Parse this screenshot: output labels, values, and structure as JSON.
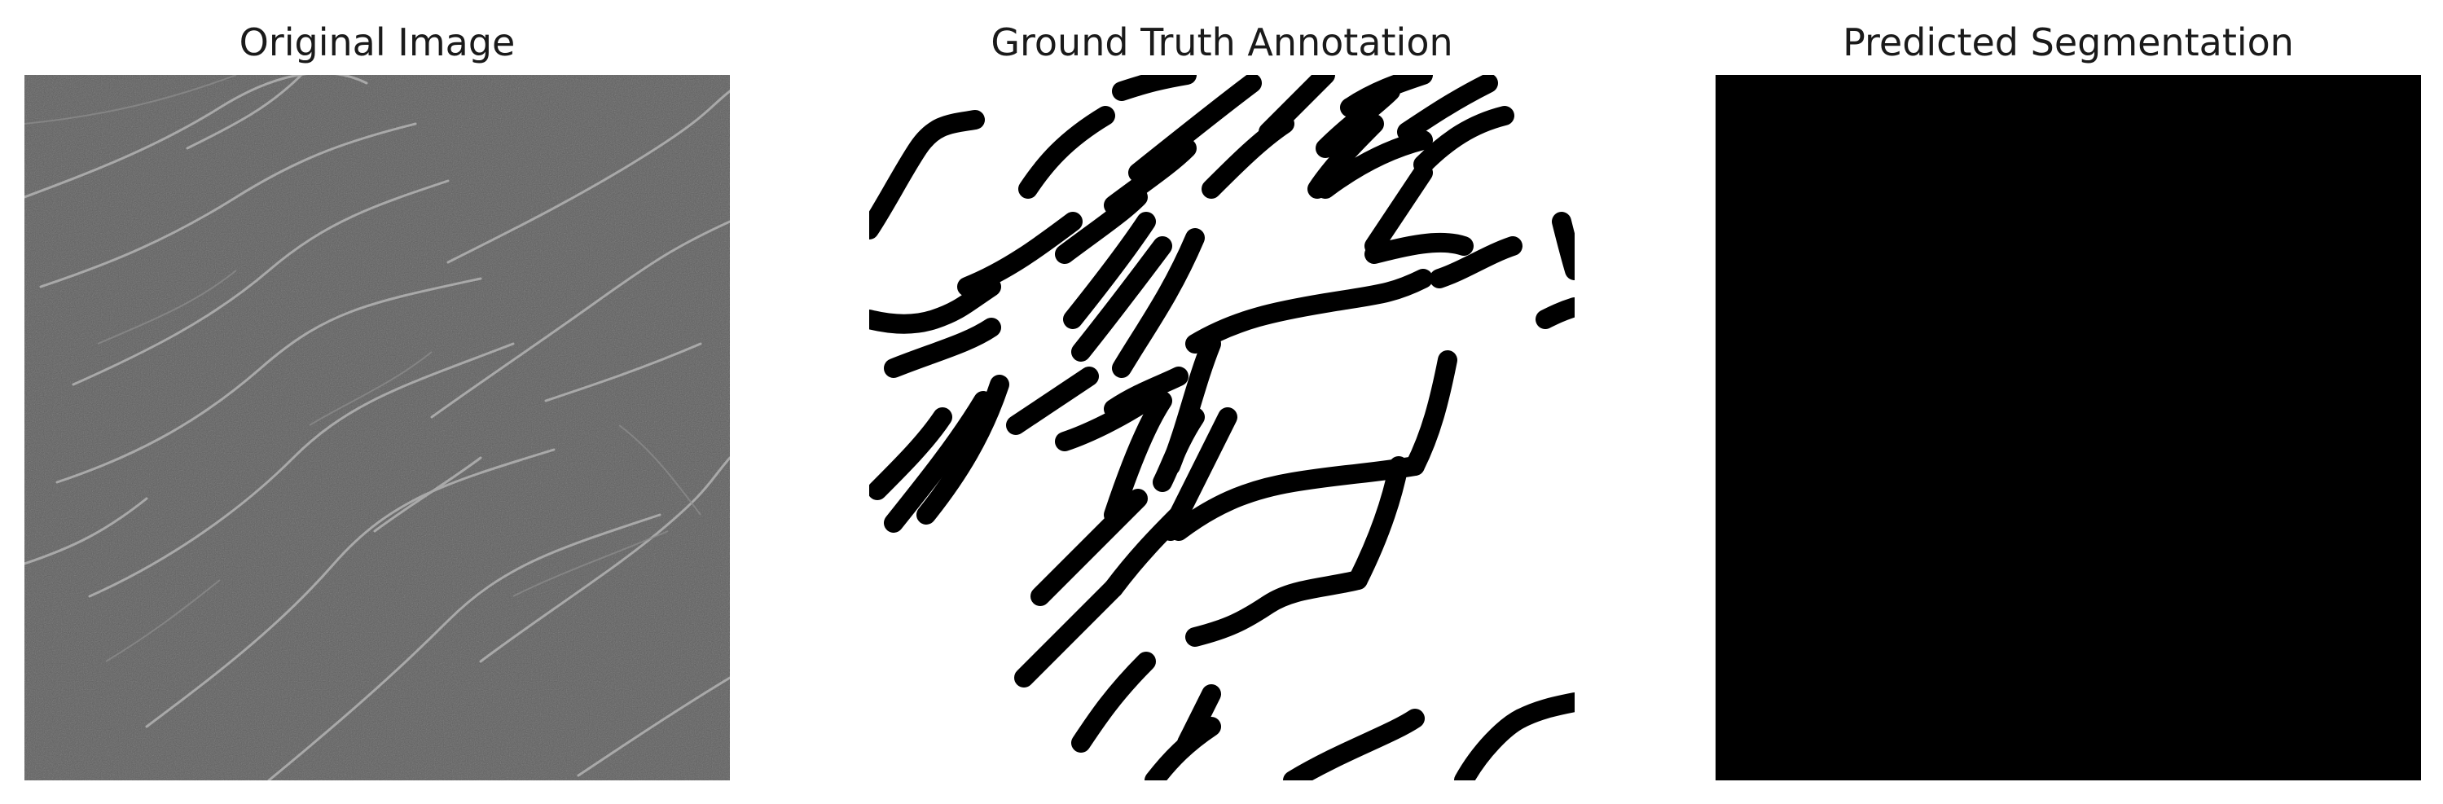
{
  "panels": [
    {
      "title": "Original Image"
    },
    {
      "title": "Ground Truth Annotation"
    },
    {
      "title": "Predicted Segmentation"
    }
  ],
  "colors": {
    "background": "#ffffff",
    "original_base": "#5e5e5e",
    "original_crack": "#b8b8b8",
    "mask_foreground": "#000000",
    "mask_background": "#ffffff",
    "prediction": "#000000"
  }
}
